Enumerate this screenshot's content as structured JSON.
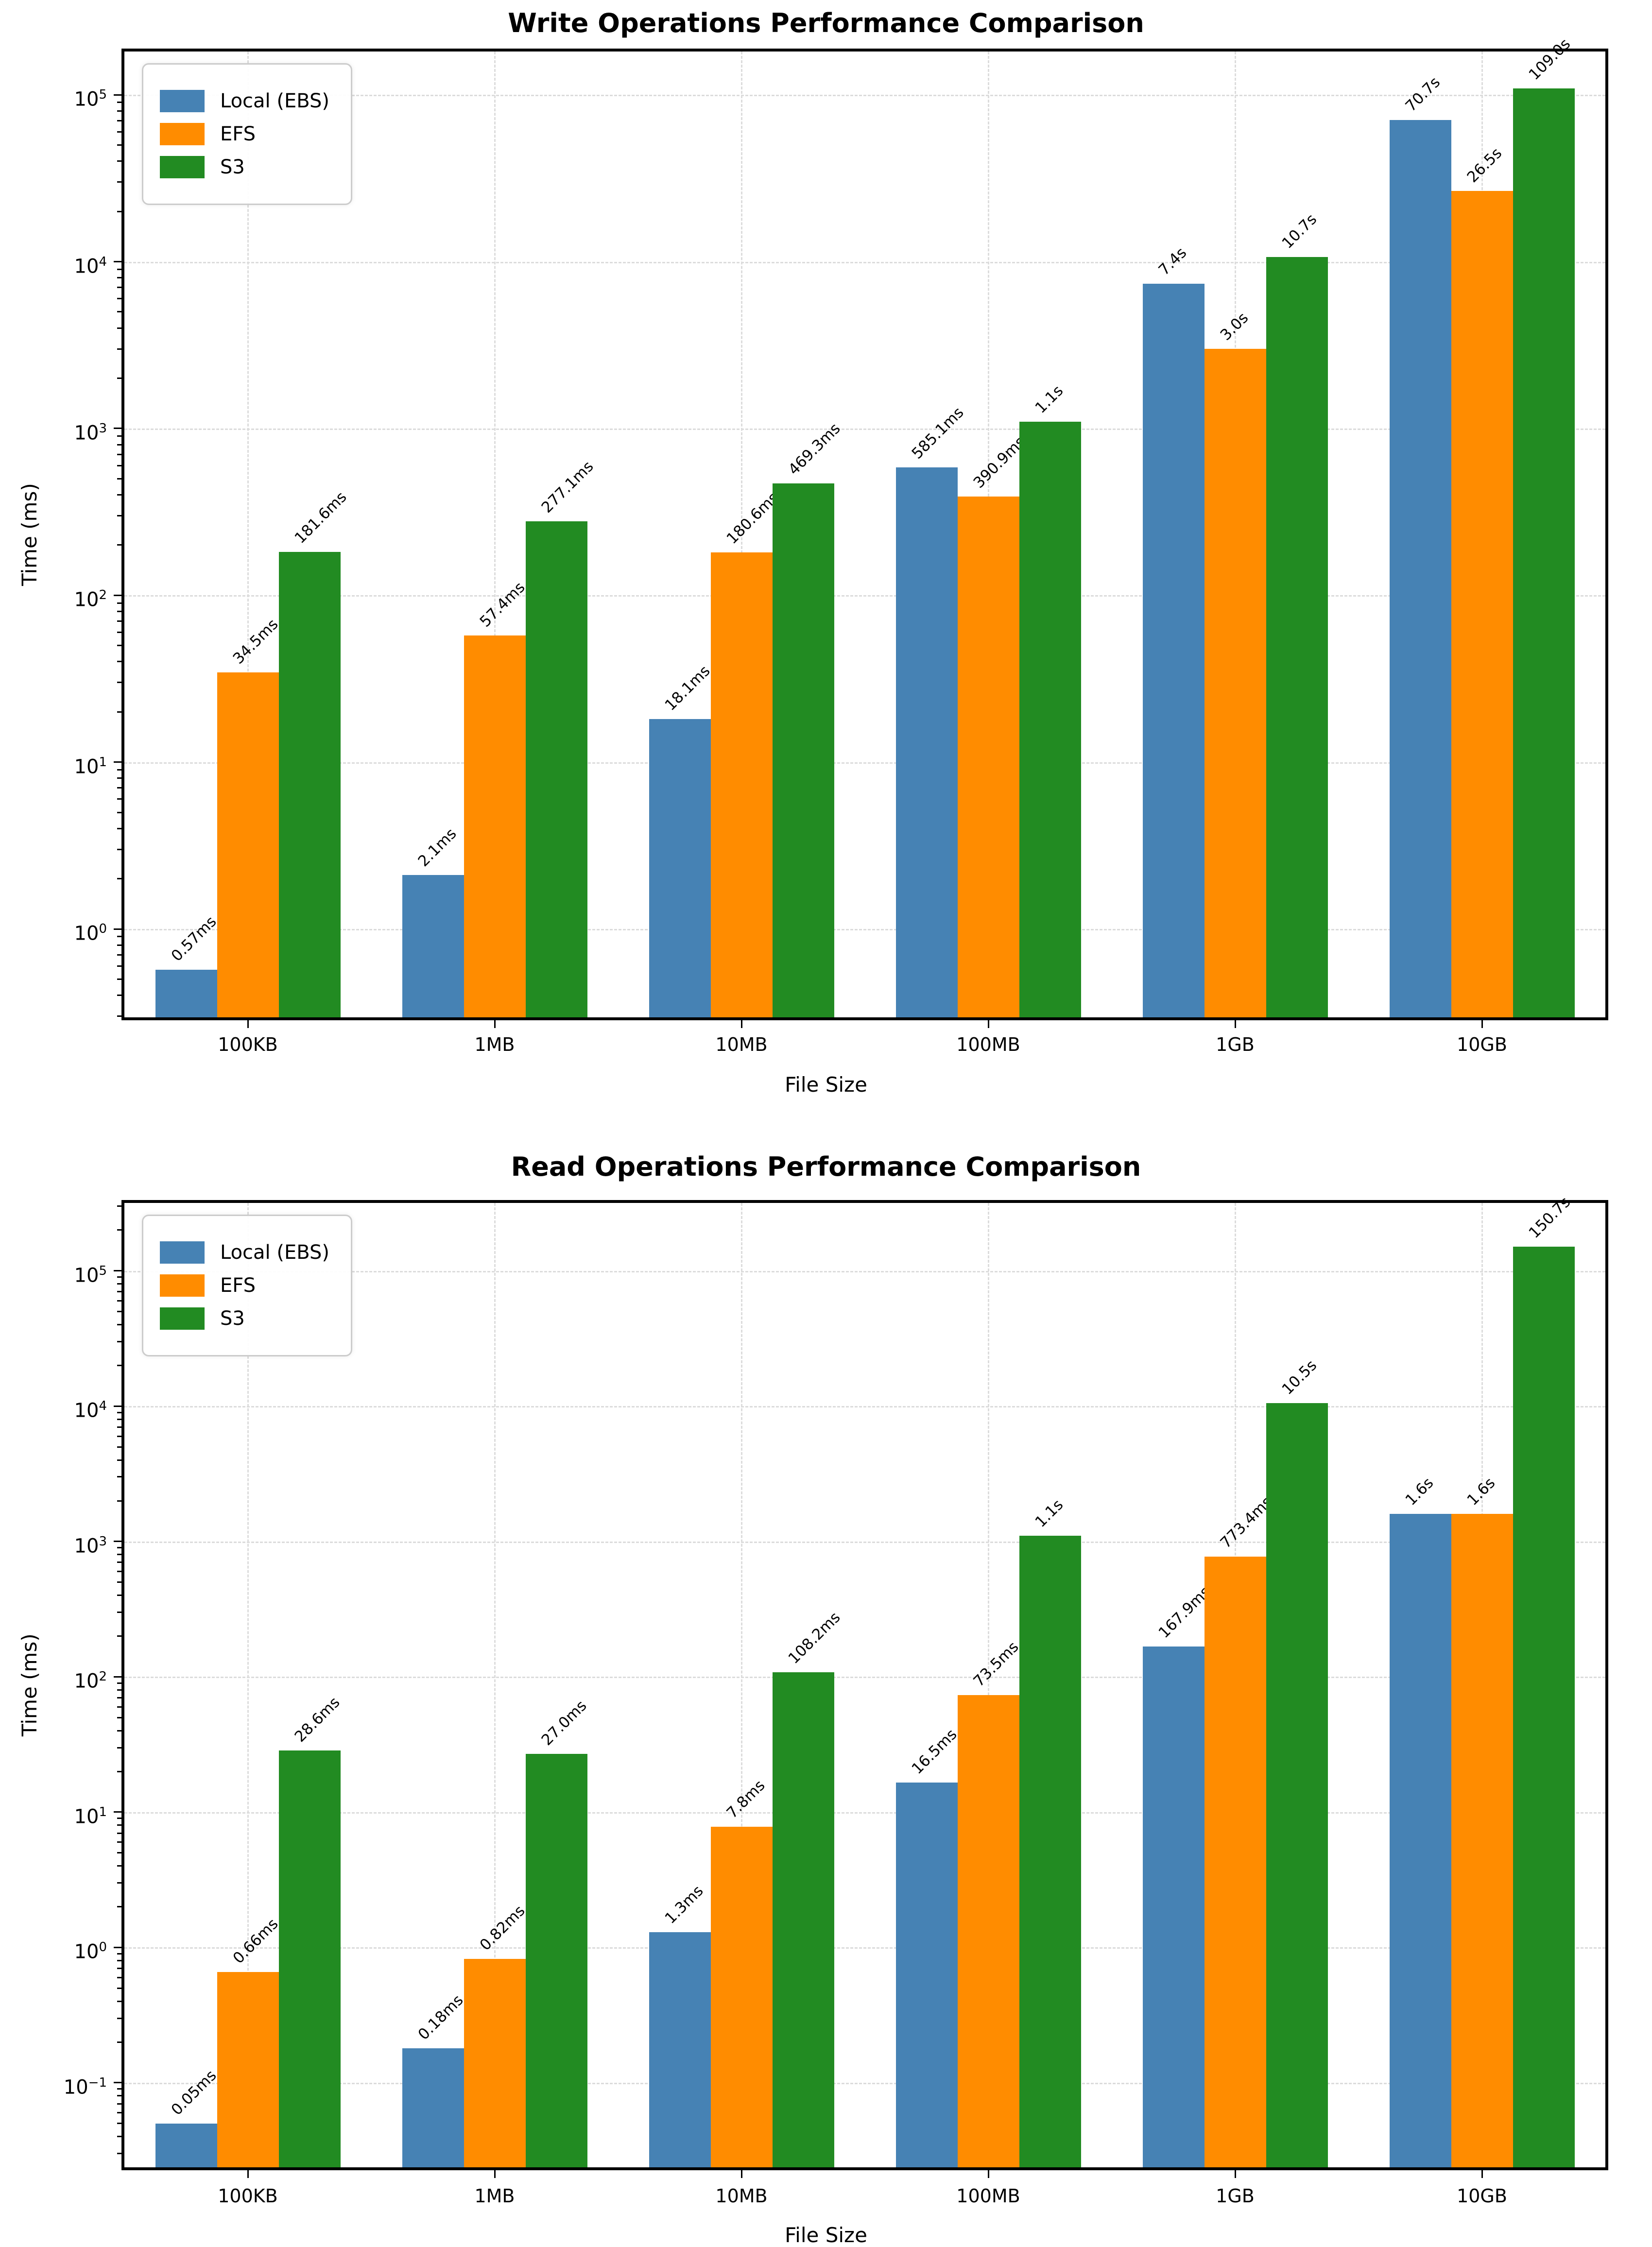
{
  "accent_colors": {
    "local_ebs": "#4682B4",
    "efs": "#FF8C00",
    "s3": "#228B22"
  },
  "chart_data": [
    {
      "type": "bar",
      "title": "Write Operations Performance Comparison",
      "xlabel": "File Size",
      "ylabel": "Time (ms)",
      "yscale": "log",
      "grid": true,
      "legend_position": "upper left",
      "categories": [
        "100KB",
        "1MB",
        "10MB",
        "100MB",
        "1GB",
        "10GB"
      ],
      "series": [
        {
          "name": "Local (EBS)",
          "color": "#4682B4",
          "values_ms": [
            0.57,
            2.1,
            18.1,
            585.1,
            7400,
            70700
          ],
          "labels": [
            "0.57ms",
            "2.1ms",
            "18.1ms",
            "585.1ms",
            "7.4s",
            "70.7s"
          ]
        },
        {
          "name": "EFS",
          "color": "#FF8C00",
          "values_ms": [
            34.5,
            57.4,
            180.6,
            390.9,
            3000,
            26500
          ],
          "labels": [
            "34.5ms",
            "57.4ms",
            "180.6ms",
            "390.9ms",
            "3.0s",
            "26.5s"
          ]
        },
        {
          "name": "S3",
          "color": "#228B22",
          "values_ms": [
            181.6,
            277.1,
            469.3,
            1100,
            10700,
            109000
          ],
          "labels": [
            "181.6ms",
            "277.1ms",
            "469.3ms",
            "1.1s",
            "10.7s",
            "109.0s"
          ]
        }
      ],
      "ylim_log10": [
        -0.53,
        5.26
      ],
      "ytick_exponents": [
        0,
        1,
        2,
        3,
        4,
        5
      ]
    },
    {
      "type": "bar",
      "title": "Read Operations Performance Comparison",
      "xlabel": "File Size",
      "ylabel": "Time (ms)",
      "yscale": "log",
      "grid": true,
      "legend_position": "upper left",
      "categories": [
        "100KB",
        "1MB",
        "10MB",
        "100MB",
        "1GB",
        "10GB"
      ],
      "series": [
        {
          "name": "Local (EBS)",
          "color": "#4682B4",
          "values_ms": [
            0.05,
            0.18,
            1.3,
            16.5,
            167.9,
            1600
          ],
          "labels": [
            "0.05ms",
            "0.18ms",
            "1.3ms",
            "16.5ms",
            "167.9ms",
            "1.6s"
          ]
        },
        {
          "name": "EFS",
          "color": "#FF8C00",
          "values_ms": [
            0.66,
            0.82,
            7.8,
            73.5,
            773.4,
            1600
          ],
          "labels": [
            "0.66ms",
            "0.82ms",
            "7.8ms",
            "73.5ms",
            "773.4ms",
            "1.6s"
          ]
        },
        {
          "name": "S3",
          "color": "#228B22",
          "values_ms": [
            28.6,
            27.0,
            108.2,
            1100,
            10500,
            150700
          ],
          "labels": [
            "28.6ms",
            "27.0ms",
            "108.2ms",
            "1.1s",
            "10.5s",
            "150.7s"
          ]
        }
      ],
      "ylim_log10": [
        -1.625,
        5.502
      ],
      "ytick_exponents": [
        -1,
        0,
        1,
        2,
        3,
        4,
        5
      ]
    }
  ]
}
